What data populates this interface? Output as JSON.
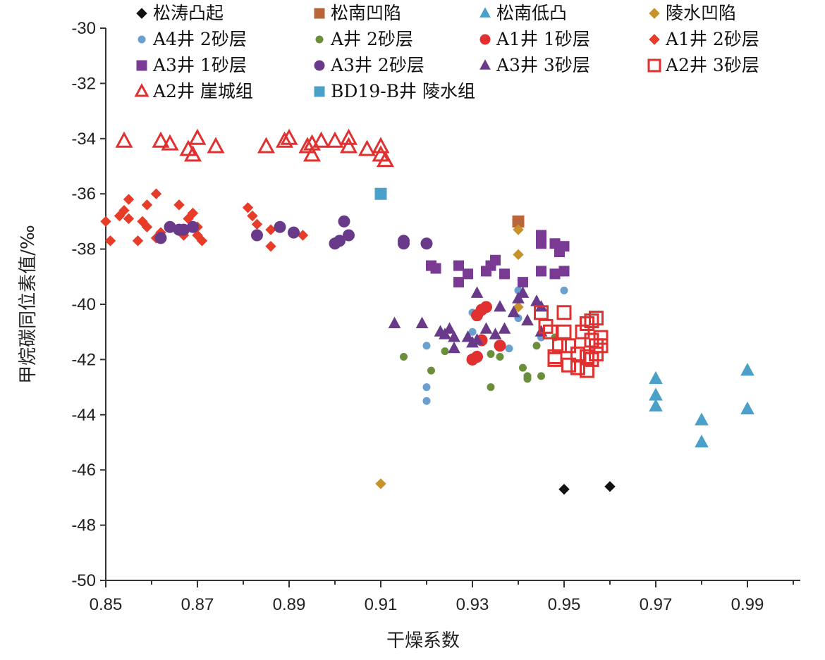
{
  "chart_data": {
    "type": "scatter",
    "xlabel": "干燥系数",
    "ylabel": "甲烷碳同位素值/‰",
    "xlim": [
      0.85,
      1.0
    ],
    "ylim": [
      -50,
      -30
    ],
    "xticks": [
      "0.85",
      "0.87",
      "0.89",
      "0.91",
      "0.93",
      "0.95",
      "0.97",
      "0.99"
    ],
    "yticks": [
      "-30",
      "-32",
      "-34",
      "-36",
      "-38",
      "-40",
      "-42",
      "-44",
      "-46",
      "-48",
      "-50"
    ],
    "grid": false,
    "legend_position": "top",
    "series": [
      {
        "name": "松涛凸起",
        "marker": "diamond",
        "color": "#111111",
        "filled": true,
        "size": 7,
        "points": [
          [
            0.95,
            -46.7
          ],
          [
            0.96,
            -46.6
          ]
        ]
      },
      {
        "name": "松南凹陷",
        "marker": "square",
        "color": "#b8653a",
        "filled": true,
        "size": 8,
        "points": [
          [
            0.94,
            -37.0
          ]
        ]
      },
      {
        "name": "松南低凸",
        "marker": "triangle",
        "color": "#4aa0c8",
        "filled": true,
        "size": 9,
        "points": [
          [
            0.97,
            -42.7
          ],
          [
            0.97,
            -43.3
          ],
          [
            0.97,
            -43.7
          ],
          [
            0.98,
            -44.2
          ],
          [
            0.98,
            -45.0
          ],
          [
            0.99,
            -42.4
          ],
          [
            0.99,
            -43.8
          ]
        ]
      },
      {
        "name": "陵水凹陷",
        "marker": "diamond",
        "color": "#c8922a",
        "filled": true,
        "size": 7,
        "points": [
          [
            0.91,
            -46.5
          ],
          [
            0.94,
            -38.2
          ],
          [
            0.94,
            -37.3
          ],
          [
            0.94,
            -40.1
          ]
        ]
      },
      {
        "name": "A4井 2砂层",
        "marker": "circle",
        "color": "#6a9fd0",
        "filled": true,
        "size": 5,
        "points": [
          [
            0.92,
            -41.5
          ],
          [
            0.92,
            -43.0
          ],
          [
            0.92,
            -43.5
          ],
          [
            0.93,
            -40.3
          ],
          [
            0.93,
            -41.0
          ],
          [
            0.94,
            -39.5
          ],
          [
            0.94,
            -40.5
          ],
          [
            0.95,
            -39.5
          ],
          [
            0.945,
            -41.2
          ],
          [
            0.938,
            -41.6
          ]
        ]
      },
      {
        "name": "A井 2砂层",
        "marker": "circle",
        "color": "#6b8e3a",
        "filled": true,
        "size": 5,
        "points": [
          [
            0.915,
            -41.9
          ],
          [
            0.921,
            -42.4
          ],
          [
            0.924,
            -41.7
          ],
          [
            0.934,
            -41.8
          ],
          [
            0.934,
            -43.0
          ],
          [
            0.936,
            -41.9
          ],
          [
            0.941,
            -42.3
          ],
          [
            0.942,
            -42.6
          ],
          [
            0.942,
            -42.7
          ],
          [
            0.944,
            -41.5
          ],
          [
            0.945,
            -42.6
          ],
          [
            0.948,
            -41.2
          ]
        ]
      },
      {
        "name": "A1井 1砂层",
        "marker": "circle",
        "color": "#e03030",
        "filled": true,
        "size": 8,
        "points": [
          [
            0.931,
            -40.4
          ],
          [
            0.932,
            -40.2
          ],
          [
            0.933,
            -40.1
          ],
          [
            0.93,
            -42.0
          ],
          [
            0.931,
            -41.9
          ],
          [
            0.936,
            -41.5
          ],
          [
            0.932,
            -41.3
          ]
        ]
      },
      {
        "name": "A1井 2砂层",
        "marker": "diamond",
        "color": "#e63c28",
        "filled": true,
        "size": 7,
        "points": [
          [
            0.85,
            -37.0
          ],
          [
            0.851,
            -37.7
          ],
          [
            0.853,
            -36.8
          ],
          [
            0.854,
            -36.6
          ],
          [
            0.855,
            -36.2
          ],
          [
            0.855,
            -36.9
          ],
          [
            0.857,
            -37.7
          ],
          [
            0.858,
            -37.0
          ],
          [
            0.859,
            -37.2
          ],
          [
            0.859,
            -36.4
          ],
          [
            0.861,
            -36.0
          ],
          [
            0.861,
            -37.6
          ],
          [
            0.862,
            -37.4
          ],
          [
            0.866,
            -36.4
          ],
          [
            0.867,
            -37.5
          ],
          [
            0.868,
            -36.9
          ],
          [
            0.869,
            -36.7
          ],
          [
            0.87,
            -37.2
          ],
          [
            0.87,
            -37.5
          ],
          [
            0.871,
            -37.7
          ],
          [
            0.881,
            -36.5
          ],
          [
            0.882,
            -36.8
          ],
          [
            0.883,
            -37.1
          ],
          [
            0.886,
            -37.3
          ],
          [
            0.886,
            -37.9
          ],
          [
            0.888,
            -37.2
          ],
          [
            0.893,
            -37.5
          ]
        ]
      },
      {
        "name": "A3井 1砂层",
        "marker": "square",
        "color": "#7a3a94",
        "filled": true,
        "size": 7,
        "points": [
          [
            0.921,
            -38.6
          ],
          [
            0.922,
            -38.7
          ],
          [
            0.927,
            -38.6
          ],
          [
            0.927,
            -39.2
          ],
          [
            0.929,
            -38.9
          ],
          [
            0.933,
            -38.8
          ],
          [
            0.934,
            -38.6
          ],
          [
            0.935,
            -38.4
          ],
          [
            0.937,
            -38.9
          ],
          [
            0.941,
            -39.2
          ],
          [
            0.945,
            -37.5
          ],
          [
            0.945,
            -37.8
          ],
          [
            0.945,
            -38.8
          ],
          [
            0.948,
            -37.8
          ],
          [
            0.949,
            -38.1
          ],
          [
            0.948,
            -38.9
          ],
          [
            0.95,
            -37.9
          ],
          [
            0.95,
            -38.8
          ]
        ]
      },
      {
        "name": "A3井 2砂层",
        "marker": "circle",
        "color": "#6a3a8a",
        "filled": true,
        "size": 8,
        "points": [
          [
            0.862,
            -37.6
          ],
          [
            0.864,
            -37.2
          ],
          [
            0.866,
            -37.3
          ],
          [
            0.867,
            -37.3
          ],
          [
            0.869,
            -37.2
          ],
          [
            0.883,
            -37.5
          ],
          [
            0.888,
            -37.2
          ],
          [
            0.891,
            -37.4
          ],
          [
            0.9,
            -37.8
          ],
          [
            0.901,
            -37.7
          ],
          [
            0.902,
            -37.0
          ],
          [
            0.903,
            -37.5
          ],
          [
            0.915,
            -37.7
          ],
          [
            0.915,
            -37.8
          ],
          [
            0.92,
            -37.8
          ]
        ]
      },
      {
        "name": "A3井 3砂层",
        "marker": "triangle",
        "color": "#6a3a8a",
        "filled": true,
        "size": 8,
        "points": [
          [
            0.913,
            -40.7
          ],
          [
            0.919,
            -40.7
          ],
          [
            0.923,
            -41.0
          ],
          [
            0.924,
            -41.1
          ],
          [
            0.925,
            -40.9
          ],
          [
            0.926,
            -41.2
          ],
          [
            0.926,
            -41.6
          ],
          [
            0.929,
            -41.2
          ],
          [
            0.93,
            -41.4
          ],
          [
            0.931,
            -39.6
          ],
          [
            0.931,
            -41.3
          ],
          [
            0.933,
            -40.9
          ],
          [
            0.935,
            -41.1
          ],
          [
            0.936,
            -40.1
          ],
          [
            0.937,
            -40.9
          ],
          [
            0.939,
            -40.3
          ],
          [
            0.94,
            -39.8
          ],
          [
            0.941,
            -39.6
          ],
          [
            0.942,
            -40.6
          ],
          [
            0.944,
            -39.9
          ],
          [
            0.945,
            -40.1
          ],
          [
            0.945,
            -41.0
          ]
        ]
      },
      {
        "name": "A2井 3砂层",
        "marker": "square",
        "color": "#e03030",
        "filled": false,
        "size": 9,
        "points": [
          [
            0.945,
            -40.3
          ],
          [
            0.946,
            -40.8
          ],
          [
            0.947,
            -41.0
          ],
          [
            0.95,
            -40.3
          ],
          [
            0.95,
            -41.0
          ],
          [
            0.951,
            -41.5
          ],
          [
            0.949,
            -41.5
          ],
          [
            0.948,
            -41.9
          ],
          [
            0.948,
            -42.0
          ],
          [
            0.951,
            -42.2
          ],
          [
            0.953,
            -41.8
          ],
          [
            0.953,
            -42.3
          ],
          [
            0.955,
            -42.4
          ],
          [
            0.955,
            -41.9
          ],
          [
            0.954,
            -41.0
          ],
          [
            0.955,
            -40.7
          ],
          [
            0.956,
            -40.6
          ],
          [
            0.957,
            -40.5
          ],
          [
            0.956,
            -41.3
          ],
          [
            0.957,
            -41.5
          ],
          [
            0.958,
            -41.2
          ],
          [
            0.958,
            -41.5
          ],
          [
            0.956,
            -42.0
          ],
          [
            0.957,
            -41.8
          ]
        ]
      },
      {
        "name": "A2井 崖城组",
        "marker": "triangle",
        "color": "#e03030",
        "filled": false,
        "size": 10,
        "points": [
          [
            0.854,
            -34.1
          ],
          [
            0.862,
            -34.1
          ],
          [
            0.864,
            -34.2
          ],
          [
            0.868,
            -34.4
          ],
          [
            0.869,
            -34.6
          ],
          [
            0.87,
            -34.0
          ],
          [
            0.874,
            -34.3
          ],
          [
            0.885,
            -34.3
          ],
          [
            0.889,
            -34.1
          ],
          [
            0.89,
            -34.0
          ],
          [
            0.894,
            -34.3
          ],
          [
            0.895,
            -34.6
          ],
          [
            0.895,
            -34.2
          ],
          [
            0.897,
            -34.1
          ],
          [
            0.9,
            -34.1
          ],
          [
            0.903,
            -34.0
          ],
          [
            0.903,
            -34.3
          ],
          [
            0.907,
            -34.4
          ],
          [
            0.91,
            -34.6
          ],
          [
            0.91,
            -34.3
          ],
          [
            0.911,
            -34.8
          ]
        ]
      },
      {
        "name": "BD19-B井 陵水组",
        "marker": "square",
        "color": "#4aa0c8",
        "filled": true,
        "size": 8,
        "points": [
          [
            0.91,
            -36.0
          ]
        ]
      }
    ]
  }
}
